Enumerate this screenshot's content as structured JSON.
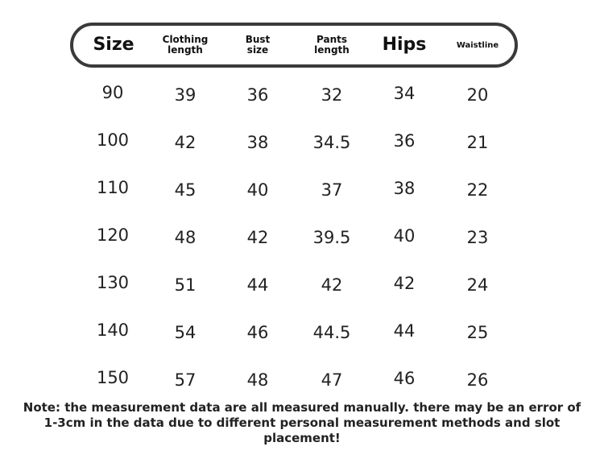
{
  "table": {
    "headers": [
      {
        "key": "size",
        "label": "Size"
      },
      {
        "key": "clothing_length",
        "label_line1": "Clothing",
        "label_line2": "length"
      },
      {
        "key": "bust_size",
        "label_line1": "Bust",
        "label_line2": "size"
      },
      {
        "key": "pants_length",
        "label_line1": "Pants",
        "label_line2": "length"
      },
      {
        "key": "hips",
        "label": "Hips"
      },
      {
        "key": "waistline",
        "label": "Waistline"
      }
    ],
    "rows": [
      [
        "90",
        "39",
        "36",
        "32",
        "34",
        "20"
      ],
      [
        "100",
        "42",
        "38",
        "34.5",
        "36",
        "21"
      ],
      [
        "110",
        "45",
        "40",
        "37",
        "38",
        "22"
      ],
      [
        "120",
        "48",
        "42",
        "39.5",
        "40",
        "23"
      ],
      [
        "130",
        "51",
        "44",
        "42",
        "42",
        "24"
      ],
      [
        "140",
        "54",
        "46",
        "44.5",
        "44",
        "25"
      ],
      [
        "150",
        "57",
        "48",
        "47",
        "46",
        "26"
      ]
    ]
  },
  "note": {
    "text": "Note: the measurement data are all measured manually. there may be an error of 1-3cm in the data due to different personal measurement methods and slot placement!"
  }
}
